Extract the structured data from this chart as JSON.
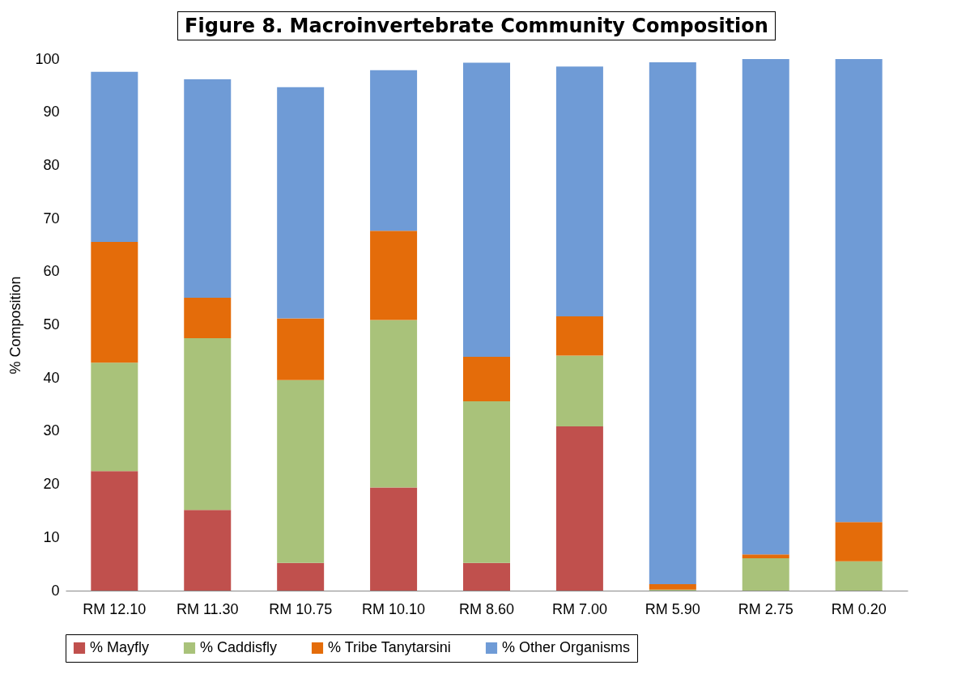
{
  "chart_data": {
    "type": "bar",
    "title": "Figure 8. Macroinvertebrate Community Composition",
    "ylabel": "% Composition",
    "categories": [
      "RM 12.10",
      "RM 11.30",
      "RM 10.75",
      "RM 10.10",
      "RM 8.60",
      "RM 7.00",
      "RM 5.90",
      "RM 2.75",
      "RM 0.20"
    ],
    "stacked": true,
    "ylim": [
      0,
      100
    ],
    "yticks": [
      0,
      10,
      20,
      30,
      40,
      50,
      60,
      70,
      80,
      90,
      100
    ],
    "grid": false,
    "legend": "bottom",
    "series": [
      {
        "name": "% Mayfly",
        "color": "#c0504d",
        "values": [
          22.5,
          15.2,
          5.2,
          19.4,
          5.2,
          30.9,
          0,
          0,
          0
        ]
      },
      {
        "name": "% Caddisfly",
        "color": "#a9c27a",
        "values": [
          20.4,
          32.3,
          34.4,
          31.5,
          30.4,
          13.3,
          0.2,
          6.1,
          5.5
        ]
      },
      {
        "name": "% Tribe Tanytarsini",
        "color": "#e46c0a",
        "values": [
          22.7,
          7.6,
          11.6,
          16.8,
          8.4,
          7.4,
          1.0,
          0.7,
          7.4
        ]
      },
      {
        "name": "% Other Organisms",
        "color": "#6f9bd6",
        "values": [
          32.0,
          41.1,
          43.5,
          30.2,
          55.3,
          47.0,
          98.2,
          93.2,
          87.1
        ]
      }
    ]
  }
}
